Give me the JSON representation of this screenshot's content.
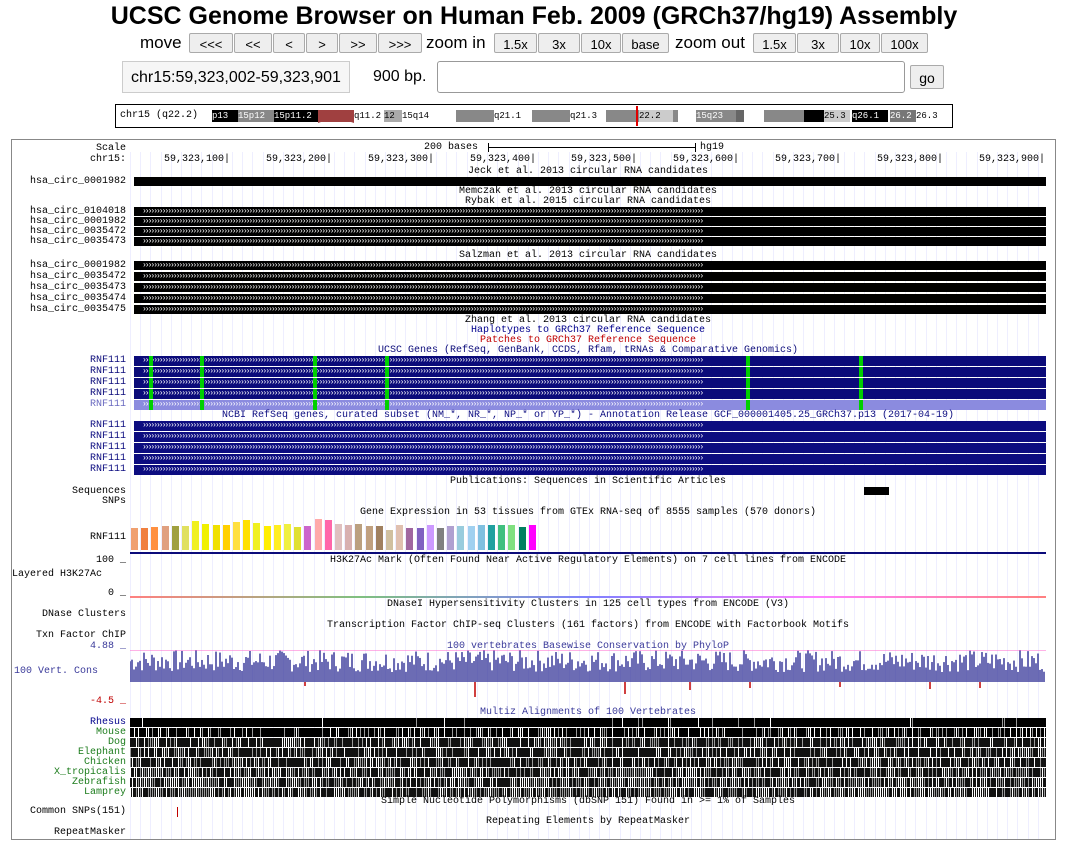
{
  "header": {
    "title": "UCSC Genome Browser on Human Feb. 2009 (GRCh37/hg19) Assembly"
  },
  "nav": {
    "move_label": "move",
    "move_buttons": [
      "<<<",
      "<<",
      "<",
      ">",
      ">>",
      ">>>"
    ],
    "zoom_in_label": "zoom in",
    "zoom_in_buttons": [
      "1.5x",
      "3x",
      "10x",
      "base"
    ],
    "zoom_out_label": "zoom out",
    "zoom_out_buttons": [
      "1.5x",
      "3x",
      "10x",
      "100x"
    ]
  },
  "position": {
    "range": "chr15:59,323,002-59,323,901",
    "size": "900 bp.",
    "input_value": "",
    "go_label": "go"
  },
  "ideogram": {
    "label": "chr15 (q22.2)",
    "bands": [
      "p13",
      "15p12",
      "15p11.2",
      "q11.2",
      "12",
      "15q14",
      "q21.1",
      "q21.3",
      "22.2",
      "15q23",
      "25.3",
      "q26.1",
      "26.2",
      "26.3"
    ]
  },
  "ruler": {
    "scale_label": "Scale",
    "chrom_label": "chr15:",
    "scale_text": "200 bases",
    "assembly": "hg19",
    "ticks": [
      "59,323,100|",
      "59,323,200|",
      "59,323,300|",
      "59,323,400|",
      "59,323,500|",
      "59,323,600|",
      "59,323,700|",
      "59,323,800|",
      "59,323,900|"
    ]
  },
  "tracks": {
    "jeck": {
      "title": "Jeck et al. 2013 circular RNA candidates",
      "items": [
        "hsa_circ_0001982"
      ]
    },
    "memczak": {
      "title": "Memczak et al. 2013 circular RNA candidates"
    },
    "rybak": {
      "title": "Rybak et al. 2015 circular RNA candidates",
      "items": [
        "hsa_circ_0104018",
        "hsa_circ_0001982",
        "hsa_circ_0035472",
        "hsa_circ_0035473"
      ]
    },
    "salzman": {
      "title": "Salzman et al. 2013 circular RNA candidates",
      "items": [
        "hsa_circ_0001982",
        "hsa_circ_0035472",
        "hsa_circ_0035473",
        "hsa_circ_0035474",
        "hsa_circ_0035475"
      ]
    },
    "zhang": {
      "title": "Zhang et al. 2013 circular RNA candidates"
    },
    "haplotypes": {
      "title": "Haplotypes to GRCh37 Reference Sequence"
    },
    "patches": {
      "title": "Patches to GRCh37 Reference Sequence"
    },
    "ucsc_genes": {
      "title": "UCSC Genes (RefSeq, GenBank, CCDS, Rfam, tRNAs & Comparative Genomics)",
      "items": [
        "RNF111",
        "RNF111",
        "RNF111",
        "RNF111",
        "RNF111"
      ]
    },
    "refseq": {
      "title": "NCBI RefSeq genes, curated subset (NM_*, NR_*, NP_* or YP_*) - Annotation Release GCF_000001405.25_GRCh37.p13 (2017-04-19)",
      "items": [
        "RNF111",
        "RNF111",
        "RNF111",
        "RNF111",
        "RNF111"
      ]
    },
    "publications": {
      "title": "Publications: Sequences in Scientific Articles",
      "sequences_label": "Sequences",
      "snps_label": "SNPs"
    },
    "gtex": {
      "title": "Gene Expression in 53 tissues from GTEx RNA-seq of 8555 samples (570 donors)",
      "gene": "RNF111"
    },
    "h3k27ac": {
      "title": "H3K27Ac Mark (Often Found Near Active Regulatory Elements) on 7 cell lines from ENCODE",
      "max": "100 _",
      "min": "0 _",
      "label": "Layered H3K27Ac"
    },
    "dnase": {
      "title": "DNaseI Hypersensitivity Clusters in 125 cell types from ENCODE (V3)",
      "label": "DNase Clusters"
    },
    "txn": {
      "title": "Transcription Factor ChIP-seq Clusters (161 factors) from ENCODE with Factorbook Motifs",
      "label": "Txn Factor ChIP"
    },
    "phylop": {
      "title": "100 vertebrates Basewise Conservation by PhyloP",
      "max": "4.88 _",
      "min": "-4.5 _",
      "label": "100 Vert. Cons"
    },
    "multiz": {
      "title": "Multiz Alignments of 100 Vertebrates",
      "species": [
        "Rhesus",
        "Mouse",
        "Dog",
        "Elephant",
        "Chicken",
        "X_tropicalis",
        "Zebrafish",
        "Lamprey"
      ]
    },
    "snp": {
      "title": "Simple Nucleotide Polymorphisms (dbSNP 151) Found in >= 1% of Samples",
      "label": "Common SNPs(151)"
    },
    "repeatmasker": {
      "title": "Repeating Elements by RepeatMasker",
      "label": "RepeatMasker"
    }
  },
  "colors": {
    "ucsc_genes": "#0b0b7a",
    "ucsc_genes_light": "#8b8bdf",
    "refseq": "#0c0c80",
    "haplotypes": "#00008c",
    "patches": "#c00000",
    "phylop": "#3a3a9a",
    "exon_green": "#00d000",
    "species_label": "#1c7c1c"
  },
  "gtex_colors": [
    "#f0a070",
    "#f08040",
    "#ff9040",
    "#e0a080",
    "#a0a040",
    "#e0e060",
    "#f0f020",
    "#f0f000",
    "#f0e000",
    "#ffd000",
    "#ffe040",
    "#ffe000",
    "#f0f020",
    "#ffee00",
    "#ffee20",
    "#f0f040",
    "#e0e030",
    "#cc66cc",
    "#ffaaaa",
    "#ff66aa",
    "#e0c0c0",
    "#d8b0b0",
    "#bba080",
    "#c0a080",
    "#a08060",
    "#d0c0a0",
    "#e0c0b0",
    "#a066a0",
    "#8060c0",
    "#cc99ff",
    "#808080",
    "#b0a0d0",
    "#99ccdd",
    "#a0d0f0",
    "#80c0e0",
    "#20a0a0",
    "#40c080",
    "#80e080",
    "#008060",
    "#ff00ff"
  ],
  "gtex_heights": [
    0.55,
    0.55,
    0.58,
    0.6,
    0.6,
    0.6,
    0.72,
    0.66,
    0.62,
    0.62,
    0.7,
    0.76,
    0.68,
    0.6,
    0.62,
    0.66,
    0.58,
    0.6,
    0.78,
    0.74,
    0.66,
    0.62,
    0.66,
    0.6,
    0.6,
    0.5,
    0.62,
    0.56,
    0.56,
    0.62,
    0.56,
    0.6,
    0.6,
    0.6,
    0.62,
    0.62,
    0.62,
    0.62,
    0.58,
    0.62
  ]
}
